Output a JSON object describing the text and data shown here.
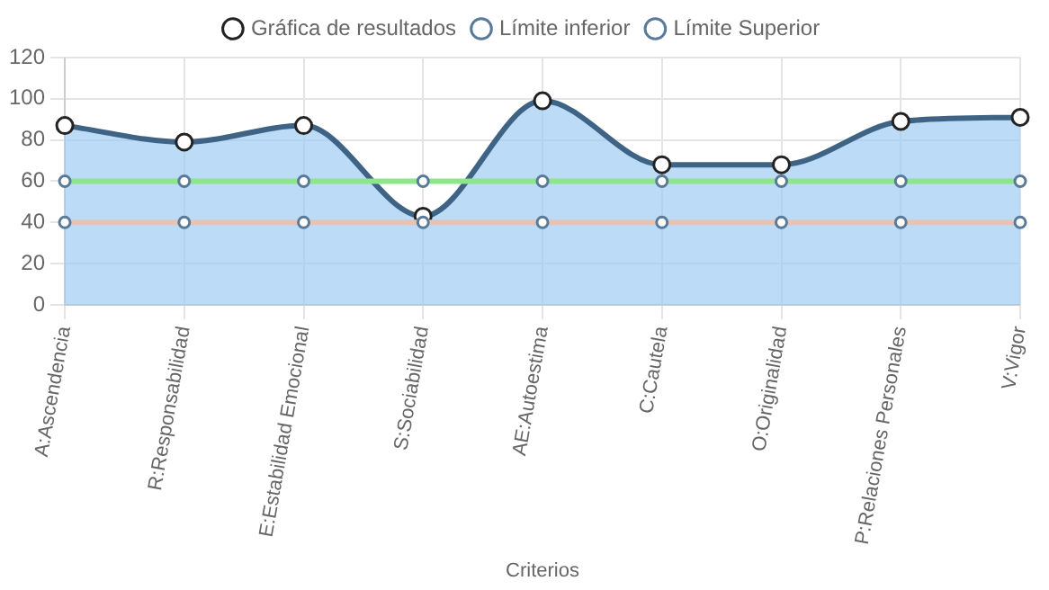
{
  "chart_data": {
    "type": "line",
    "xlabel": "Criterios",
    "categories": [
      "A:Ascendencia",
      "R:Responsabilidad",
      "E:Estabilidad Emocional",
      "S:Sociabilidad",
      "AE:Autoestima",
      "C:Cautela",
      "O:Originalidad",
      "P:Relaciones Personales",
      "V:Vigor"
    ],
    "series": [
      {
        "name": "Gráfica de resultados",
        "type": "area",
        "color": "#3e6385",
        "values": [
          87,
          79,
          87,
          43,
          99,
          68,
          68,
          89,
          91
        ]
      },
      {
        "name": "Límite inferior",
        "color": "#e5c4b8",
        "values": [
          40,
          40,
          40,
          40,
          40,
          40,
          40,
          40,
          40
        ]
      },
      {
        "name": "Límite Superior",
        "color": "#8ee68a",
        "values": [
          60,
          60,
          60,
          60,
          60,
          60,
          60,
          60,
          60
        ]
      }
    ],
    "ylim": [
      0,
      120
    ],
    "yticks": [
      0,
      20,
      40,
      60,
      80,
      100,
      120
    ],
    "grid": true,
    "legend": "top",
    "marker": "circle",
    "line_style": "solid"
  }
}
